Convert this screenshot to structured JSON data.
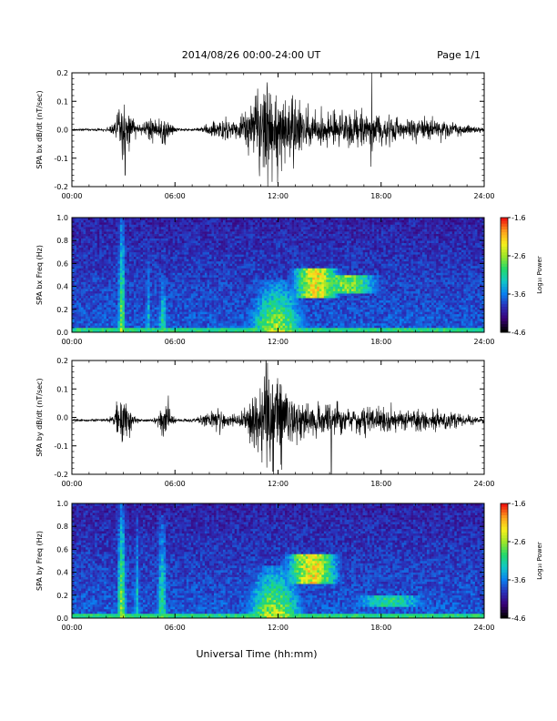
{
  "header": {
    "title": "2014/08/26  00:00-24:00 UT",
    "page": "Page 1/1"
  },
  "footer": {
    "xlabel": "Universal Time (hh:mm)"
  },
  "colors": {
    "axis": "#000000",
    "trace": "#000000",
    "spectrogram_background": "#25126a",
    "colormap": [
      "#000000",
      "#3b0077",
      "#2a2fb8",
      "#0a7ff0",
      "#11c7c7",
      "#23d96b",
      "#9ae62a",
      "#f7f01c",
      "#fda11c",
      "#f0190f"
    ]
  },
  "chart_data": [
    {
      "type": "line",
      "ylabel": "SPA bx dB/dt (nT/sec)",
      "xlim": [
        0,
        24
      ],
      "ylim": [
        -0.2,
        0.2
      ],
      "x_ticks": [
        "00:00",
        "06:00",
        "12:00",
        "18:00",
        "24:00"
      ],
      "y_ticks": [
        "-0.2",
        "-0.1",
        "0.0",
        "0.1",
        "0.2"
      ],
      "baseline": 0.0,
      "activity": [
        {
          "center": 3.05,
          "width": 0.55,
          "amplitude": 0.11
        },
        {
          "center": 4.55,
          "width": 0.35,
          "amplitude": 0.06
        },
        {
          "center": 5.4,
          "width": 0.4,
          "amplitude": 0.06
        },
        {
          "center": 8.6,
          "width": 0.8,
          "amplitude": 0.04
        },
        {
          "center": 11.35,
          "width": 1.3,
          "amplitude": 0.2
        },
        {
          "center": 12.9,
          "width": 0.8,
          "amplitude": 0.09
        },
        {
          "center": 14.6,
          "width": 1.6,
          "amplitude": 0.06
        },
        {
          "center": 17.0,
          "width": 1.8,
          "amplitude": 0.055
        },
        {
          "center": 20.5,
          "width": 2.5,
          "amplitude": 0.04
        }
      ],
      "spikes": [
        {
          "x": 17.45,
          "y": 0.2
        },
        {
          "x": 17.4,
          "y": -0.13
        },
        {
          "x": 3.1,
          "y": -0.16
        },
        {
          "x": 11.4,
          "y": -0.2
        }
      ]
    },
    {
      "type": "heatmap",
      "ylabel": "SPA bx Freq (Hz)",
      "xlim": [
        0,
        24
      ],
      "ylim": [
        0,
        1.0
      ],
      "x_ticks": [
        "00:00",
        "06:00",
        "12:00",
        "18:00",
        "24:00"
      ],
      "y_ticks": [
        "0.0",
        "0.2",
        "0.4",
        "0.6",
        "0.8",
        "1.0"
      ],
      "colorbar": {
        "label": "Log₁₀ Power",
        "range": [
          -4.6,
          -1.6
        ],
        "ticks": [
          "-1.6",
          "-2.6",
          "-3.6",
          "-4.6"
        ]
      },
      "features": [
        {
          "x": 2.9,
          "width": 0.25,
          "f_max": 1.0,
          "level": 0.72
        },
        {
          "x": 4.45,
          "width": 0.2,
          "f_max": 0.8,
          "level": 0.5
        },
        {
          "x": 5.3,
          "width": 0.3,
          "f_max": 0.5,
          "level": 0.62
        },
        {
          "x": 11.9,
          "width": 1.8,
          "f_max": 0.45,
          "level": 0.78
        },
        {
          "x": 14.2,
          "width": 1.4,
          "f_min": 0.3,
          "f_max": 0.55,
          "level": 0.82
        },
        {
          "x": 16.0,
          "width": 2.0,
          "f_min": 0.35,
          "f_max": 0.5,
          "level": 0.68
        }
      ]
    },
    {
      "type": "line",
      "ylabel": "SPA by dB/dt (nT/sec)",
      "xlim": [
        0,
        24
      ],
      "ylim": [
        -0.2,
        0.2
      ],
      "x_ticks": [
        "00:00",
        "06:00",
        "12:00",
        "18:00",
        "24:00"
      ],
      "y_ticks": [
        "-0.2",
        "-0.1",
        "0.0",
        "0.1",
        "0.2"
      ],
      "baseline": -0.01,
      "activity": [
        {
          "center": 3.0,
          "width": 0.5,
          "amplitude": 0.1
        },
        {
          "center": 5.4,
          "width": 0.4,
          "amplitude": 0.07
        },
        {
          "center": 8.4,
          "width": 0.9,
          "amplitude": 0.04
        },
        {
          "center": 11.5,
          "width": 1.2,
          "amplitude": 0.18
        },
        {
          "center": 13.0,
          "width": 0.9,
          "amplitude": 0.06
        },
        {
          "center": 15.0,
          "width": 1.2,
          "amplitude": 0.07
        },
        {
          "center": 17.5,
          "width": 1.6,
          "amplitude": 0.045
        },
        {
          "center": 20.8,
          "width": 2.2,
          "amplitude": 0.04
        }
      ],
      "spikes": [
        {
          "x": 11.3,
          "y": 0.2
        },
        {
          "x": 15.1,
          "y": -0.2
        },
        {
          "x": 11.7,
          "y": -0.19
        }
      ]
    },
    {
      "type": "heatmap",
      "ylabel": "SPA by Freq (Hz)",
      "xlim": [
        0,
        24
      ],
      "ylim": [
        0,
        1.0
      ],
      "x_ticks": [
        "00:00",
        "06:00",
        "12:00",
        "18:00",
        "24:00"
      ],
      "y_ticks": [
        "0.0",
        "0.2",
        "0.4",
        "0.6",
        "0.8",
        "1.0"
      ],
      "colorbar": {
        "label": "Log₁₀ Power",
        "range": [
          -4.6,
          -1.6
        ],
        "ticks": [
          "-1.6",
          "-2.6",
          "-3.6",
          "-4.6"
        ]
      },
      "features": [
        {
          "x": 2.9,
          "width": 0.3,
          "f_max": 1.0,
          "level": 0.74
        },
        {
          "x": 3.8,
          "width": 0.2,
          "f_max": 0.9,
          "level": 0.55
        },
        {
          "x": 5.25,
          "width": 0.35,
          "f_max": 0.9,
          "level": 0.62
        },
        {
          "x": 11.8,
          "width": 1.8,
          "f_max": 0.45,
          "level": 0.8
        },
        {
          "x": 14.0,
          "width": 1.6,
          "f_min": 0.3,
          "f_max": 0.55,
          "level": 0.82
        },
        {
          "x": 18.5,
          "width": 2.5,
          "f_min": 0.1,
          "f_max": 0.2,
          "level": 0.55
        }
      ]
    }
  ]
}
